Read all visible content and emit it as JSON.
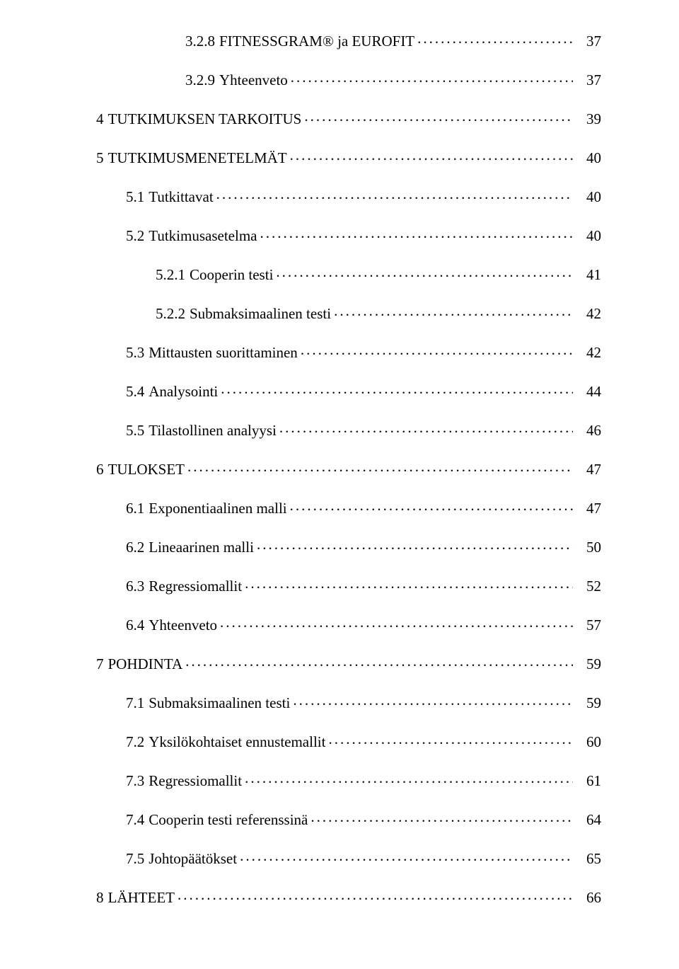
{
  "toc": [
    {
      "indent": 3,
      "num": "3.2.8",
      "title": "FITNESSGRAM® ja EUROFIT",
      "page": "37"
    },
    {
      "indent": 3,
      "num": "3.2.9",
      "title": "Yhteenveto",
      "page": "37"
    },
    {
      "indent": 0,
      "num": "4",
      "title": "TUTKIMUKSEN TARKOITUS",
      "page": "39"
    },
    {
      "indent": 0,
      "num": "5",
      "title": "TUTKIMUSMENETELMÄT",
      "page": "40"
    },
    {
      "indent": 1,
      "num": "5.1",
      "title": "Tutkittavat",
      "page": "40"
    },
    {
      "indent": 1,
      "num": "5.2",
      "title": "Tutkimusasetelma",
      "page": "40"
    },
    {
      "indent": 2,
      "num": "5.2.1",
      "title": "Cooperin testi",
      "page": "41"
    },
    {
      "indent": 2,
      "num": "5.2.2",
      "title": "Submaksimaalinen testi",
      "page": "42"
    },
    {
      "indent": 1,
      "num": "5.3",
      "title": "Mittausten suorittaminen",
      "page": "42"
    },
    {
      "indent": 1,
      "num": "5.4",
      "title": "Analysointi",
      "page": "44"
    },
    {
      "indent": 1,
      "num": "5.5",
      "title": "Tilastollinen analyysi",
      "page": "46"
    },
    {
      "indent": 0,
      "num": "6",
      "title": "TULOKSET",
      "page": "47"
    },
    {
      "indent": 1,
      "num": "6.1",
      "title": "Exponentiaalinen malli",
      "page": "47"
    },
    {
      "indent": 1,
      "num": "6.2",
      "title": "Lineaarinen malli",
      "page": "50"
    },
    {
      "indent": 1,
      "num": "6.3",
      "title": "Regressiomallit",
      "page": "52"
    },
    {
      "indent": 1,
      "num": "6.4",
      "title": "Yhteenveto",
      "page": "57"
    },
    {
      "indent": 0,
      "num": "7",
      "title": "POHDINTA",
      "page": "59"
    },
    {
      "indent": 1,
      "num": "7.1",
      "title": "Submaksimaalinen testi",
      "page": "59"
    },
    {
      "indent": 1,
      "num": "7.2",
      "title": "Yksilökohtaiset ennustemallit",
      "page": "60"
    },
    {
      "indent": 1,
      "num": "7.3",
      "title": "Regressiomallit",
      "page": "61"
    },
    {
      "indent": 1,
      "num": "7.4",
      "title": "Cooperin testi referenssinä",
      "page": "64"
    },
    {
      "indent": 1,
      "num": "7.5",
      "title": "Johtopäätökset",
      "page": "65"
    },
    {
      "indent": 0,
      "num": "8",
      "title": "LÄHTEET",
      "page": "66"
    }
  ]
}
